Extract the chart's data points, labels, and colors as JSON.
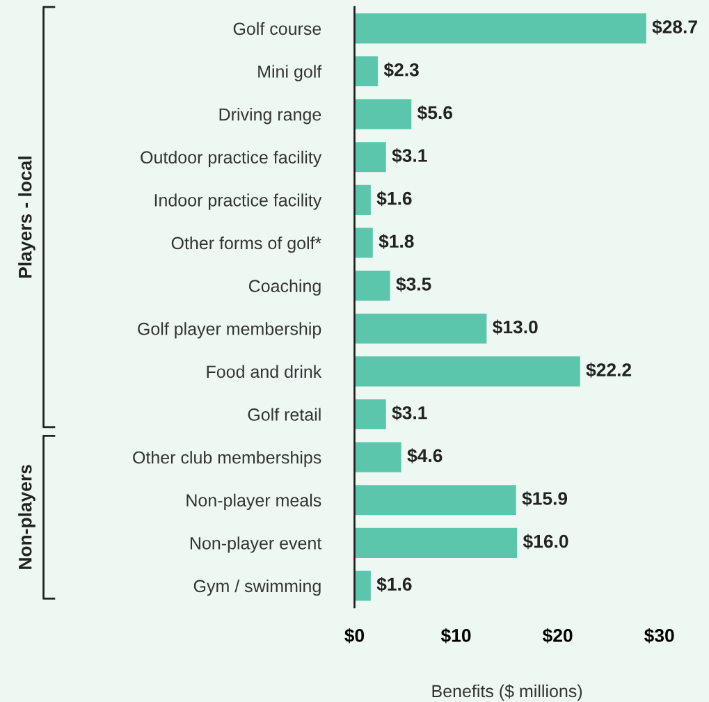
{
  "chart_data": {
    "type": "bar",
    "orientation": "horizontal",
    "xlabel": "Benefits ($ millions)",
    "categories": [
      "Golf course",
      "Mini golf",
      "Driving range",
      "Outdoor practice facility",
      "Indoor practice facility",
      "Other forms of golf*",
      "Coaching",
      "Golf player membership",
      "Food and drink",
      "Golf retail",
      "Other club memberships",
      "Non-player meals",
      "Non-player event",
      "Gym / swimming"
    ],
    "values": [
      28.7,
      2.3,
      5.6,
      3.1,
      1.6,
      1.8,
      3.5,
      13.0,
      22.2,
      3.1,
      4.6,
      15.9,
      16.0,
      1.6
    ],
    "value_labels": [
      "$28.7",
      "$2.3",
      "$5.6",
      "$3.1",
      "$1.6",
      "$1.8",
      "$3.5",
      "$13.0",
      "$22.2",
      "$3.1",
      "$4.6",
      "$15.9",
      "$16.0",
      "$1.6"
    ],
    "color": "#5cc6ad",
    "xlim": [
      0,
      30
    ],
    "xticks": [
      {
        "value": 0,
        "label": "$0"
      },
      {
        "value": 10,
        "label": "$10"
      },
      {
        "value": 20,
        "label": "$20"
      },
      {
        "value": 30,
        "label": "$30"
      }
    ],
    "annotations": [
      "Players - local",
      "Non-players"
    ],
    "grid": false,
    "legend": false
  }
}
